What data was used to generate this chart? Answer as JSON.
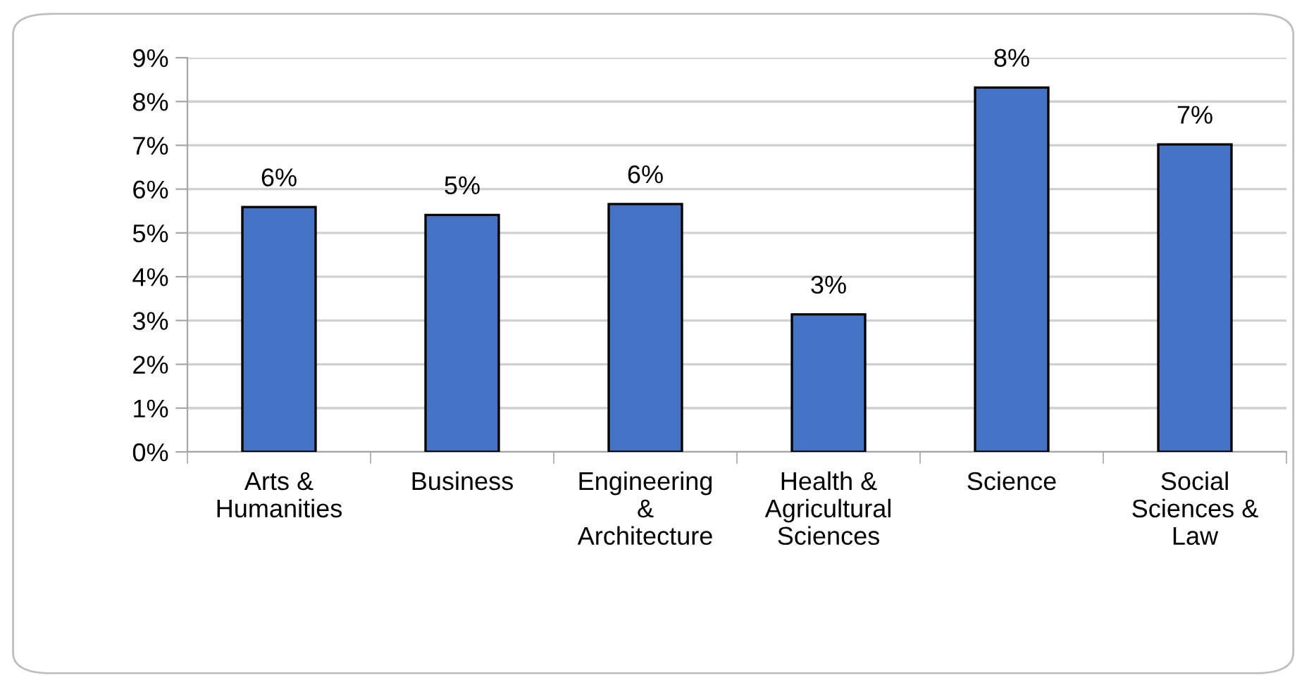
{
  "chart_data": {
    "type": "bar",
    "categories": [
      "Arts &\nHumanities",
      "Business",
      "Engineering\n&\nArchitecture",
      "Health &\nAgricultural\nSciences",
      "Science",
      "Social\nSciences &\nLaw"
    ],
    "values": [
      5.59,
      5.41,
      5.66,
      3.14,
      8.32,
      7.02
    ],
    "value_labels": [
      "6%",
      "5%",
      "6%",
      "3%",
      "8%",
      "7%"
    ],
    "color": "#4472c4",
    "ylim": [
      0,
      9
    ],
    "yticks": [
      {
        "value": 0,
        "label": "0%"
      },
      {
        "value": 1,
        "label": "1%"
      },
      {
        "value": 2,
        "label": "2%"
      },
      {
        "value": 3,
        "label": "3%"
      },
      {
        "value": 4,
        "label": "4%"
      },
      {
        "value": 5,
        "label": "5%"
      },
      {
        "value": 6,
        "label": "6%"
      },
      {
        "value": 7,
        "label": "7%"
      },
      {
        "value": 8,
        "label": "8%"
      },
      {
        "value": 9,
        "label": "9%"
      }
    ],
    "grid": "y",
    "legend": false
  }
}
